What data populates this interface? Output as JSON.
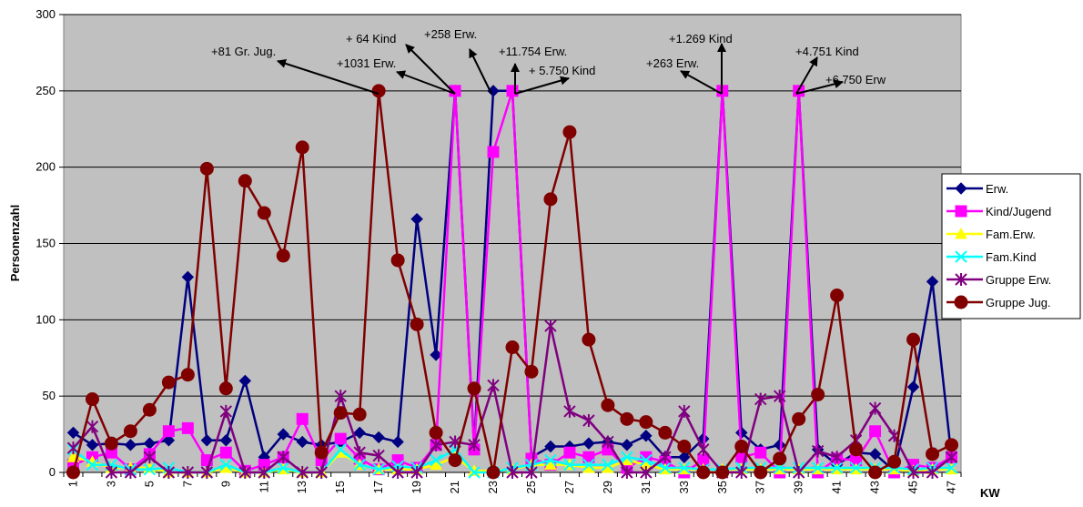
{
  "chart_data": {
    "type": "line",
    "ylabel": "Personenzahl",
    "xlabel": "KW",
    "ylim": [
      0,
      300
    ],
    "yticks": [
      0,
      50,
      100,
      150,
      200,
      250,
      300
    ],
    "x": [
      1,
      2,
      3,
      4,
      5,
      6,
      7,
      8,
      9,
      10,
      11,
      12,
      13,
      14,
      15,
      16,
      17,
      18,
      19,
      20,
      21,
      22,
      23,
      24,
      25,
      26,
      27,
      28,
      29,
      30,
      31,
      32,
      33,
      34,
      35,
      36,
      37,
      38,
      39,
      40,
      41,
      42,
      43,
      44,
      45,
      46,
      47
    ],
    "xtick_labels": [
      "1",
      "3",
      "5",
      "7",
      "9",
      "11",
      "13",
      "15",
      "17",
      "19",
      "21",
      "23",
      "25",
      "27",
      "29",
      "31",
      "33",
      "35",
      "37",
      "39",
      "41",
      "43",
      "45",
      "47"
    ],
    "plot_background": "#c0c0c0",
    "grid": "horizontal",
    "legend_position": "right",
    "series": [
      {
        "name": "Erw.",
        "color": "#000080",
        "marker": "diamond",
        "values": [
          26,
          18,
          19,
          18,
          19,
          21,
          128,
          21,
          21,
          60,
          10,
          25,
          20,
          18,
          20,
          26,
          23,
          20,
          166,
          77,
          250,
          17,
          250,
          250,
          10,
          17,
          17,
          19,
          20,
          18,
          24,
          10,
          10,
          22,
          250,
          26,
          15,
          18,
          250,
          15,
          5,
          13,
          12,
          1,
          56,
          125,
          10
        ]
      },
      {
        "name": "Kind/Jugend",
        "color": "#ff00ff",
        "marker": "square",
        "values": [
          5,
          10,
          13,
          2,
          12,
          27,
          29,
          8,
          13,
          1,
          5,
          10,
          35,
          8,
          22,
          9,
          2,
          8,
          3,
          18,
          250,
          15,
          210,
          250,
          9,
          5,
          13,
          10,
          15,
          3,
          10,
          7,
          0,
          8,
          250,
          10,
          13,
          0,
          250,
          0,
          9,
          8,
          27,
          0,
          5,
          3,
          10
        ]
      },
      {
        "name": "Fam.Erw.",
        "color": "#ffff00",
        "marker": "triangle",
        "values": [
          10,
          7,
          3,
          3,
          3,
          0,
          0,
          0,
          3,
          0,
          0,
          2,
          0,
          0,
          13,
          5,
          2,
          2,
          2,
          5,
          10,
          1,
          1,
          2,
          5,
          5,
          5,
          3,
          3,
          8,
          5,
          2,
          2,
          2,
          2,
          2,
          2,
          2,
          2,
          2,
          2,
          2,
          2,
          2,
          1,
          2,
          2
        ]
      },
      {
        "name": "Fam.Kind",
        "color": "#00ffff",
        "marker": "x",
        "values": [
          15,
          5,
          5,
          2,
          2,
          3,
          0,
          0,
          5,
          0,
          0,
          3,
          0,
          0,
          15,
          5,
          2,
          4,
          3,
          8,
          15,
          0,
          0,
          3,
          5,
          8,
          5,
          5,
          5,
          10,
          8,
          3,
          3,
          2,
          2,
          3,
          3,
          3,
          3,
          3,
          3,
          3,
          3,
          3,
          2,
          3,
          3
        ]
      },
      {
        "name": "Gruppe Erw.",
        "color": "#800080",
        "marker": "star",
        "values": [
          16,
          30,
          0,
          0,
          10,
          0,
          0,
          0,
          40,
          0,
          0,
          10,
          0,
          0,
          50,
          13,
          11,
          0,
          0,
          18,
          20,
          18,
          57,
          0,
          0,
          96,
          40,
          34,
          20,
          0,
          0,
          10,
          40,
          15,
          0,
          0,
          48,
          50,
          0,
          14,
          10,
          21,
          42,
          24,
          0,
          0,
          10
        ]
      },
      {
        "name": "Gruppe Jug.",
        "color": "#800000",
        "marker": "circle",
        "values": [
          0,
          48,
          19,
          27,
          41,
          59,
          64,
          199,
          55,
          191,
          170,
          142,
          213,
          13,
          39,
          38,
          250,
          139,
          97,
          26,
          8,
          55,
          0,
          82,
          66,
          179,
          223,
          87,
          44,
          35,
          33,
          26,
          17,
          0,
          0,
          17,
          0,
          9,
          35,
          51,
          116,
          15,
          0,
          7,
          87,
          12,
          18
        ]
      }
    ],
    "annotations": [
      {
        "text": "+81 Gr. Jug."
      },
      {
        "text": "+1031 Erw."
      },
      {
        "text": "+ 64 Kind"
      },
      {
        "text": "+258 Erw."
      },
      {
        "text": "+11.754 Erw."
      },
      {
        "text": "+ 5.750 Kind"
      },
      {
        "text": "+263 Erw."
      },
      {
        "text": "+1.269 Kind"
      },
      {
        "text": "+4.751 Kind"
      },
      {
        "text": "+6.750 Erw"
      }
    ]
  }
}
